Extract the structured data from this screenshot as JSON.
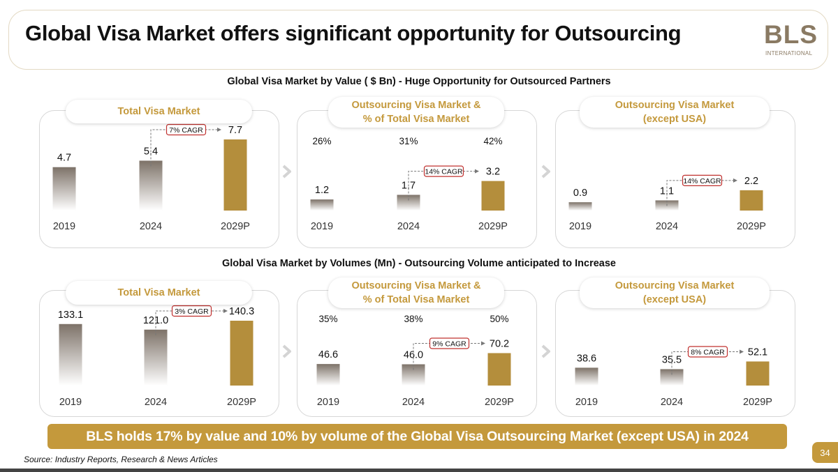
{
  "header": {
    "title": "Global Visa Market offers significant opportunity for Outsourcing",
    "logo_main": "BLS",
    "logo_sub": "INTERNATIONAL"
  },
  "sections": {
    "value_heading": "Global Visa Market by Value ( $ Bn) - Huge Opportunity for Outsourced Partners",
    "volume_heading": "Global Visa Market by Volumes (Mn) - Outsourcing Volume anticipated to Increase"
  },
  "colors": {
    "gold": "#c4993c",
    "bar": "#b48e3c",
    "cagr_border": "#c0302e"
  },
  "panels": {
    "value_total": {
      "title_lines": [
        "Total Visa Market"
      ]
    },
    "value_outsourcing": {
      "title_lines": [
        "Outsourcing Visa Market &",
        "% of Total Visa Market"
      ]
    },
    "value_except_usa": {
      "title_lines": [
        "Outsourcing Visa Market",
        "(except USA)"
      ]
    },
    "volume_total": {
      "title_lines": [
        "Total Visa Market"
      ]
    },
    "volume_outsourcing": {
      "title_lines": [
        "Outsourcing Visa Market &",
        "% of Total Visa Market"
      ]
    },
    "volume_except_usa": {
      "title_lines": [
        "Outsourcing Visa Market",
        "(except USA)"
      ]
    }
  },
  "chart_data": [
    {
      "id": "value_total",
      "type": "bar",
      "title": "Total Visa Market",
      "unit": "$ Bn",
      "categories": [
        "2019",
        "2024",
        "2029P"
      ],
      "values": [
        4.7,
        5.4,
        7.7
      ],
      "value_labels": [
        "4.7",
        "5.4",
        "7.7"
      ],
      "cagr": "7% CAGR",
      "max": 7.7
    },
    {
      "id": "value_outsourcing",
      "type": "bar",
      "title": "Outsourcing Visa Market & % of Total Visa Market",
      "unit": "$ Bn",
      "categories": [
        "2019",
        "2024",
        "2029P"
      ],
      "values": [
        1.2,
        1.7,
        3.2
      ],
      "value_labels": [
        "1.2",
        "1.7",
        "3.2"
      ],
      "share_of_total": [
        "26%",
        "31%",
        "42%"
      ],
      "cagr": "14% CAGR",
      "max": 7.7
    },
    {
      "id": "value_except_usa",
      "type": "bar",
      "title": "Outsourcing Visa Market (except USA)",
      "unit": "$ Bn",
      "categories": [
        "2019",
        "2024",
        "2029P"
      ],
      "values": [
        0.9,
        1.1,
        2.2
      ],
      "value_labels": [
        "0.9",
        "1.1",
        "2.2"
      ],
      "cagr": "14% CAGR",
      "max": 7.7
    },
    {
      "id": "volume_total",
      "type": "bar",
      "title": "Total Visa Market",
      "unit": "Mn",
      "categories": [
        "2019",
        "2024",
        "2029P"
      ],
      "values": [
        133.1,
        121.0,
        140.3
      ],
      "value_labels": [
        "133.1",
        "121.0",
        "140.3"
      ],
      "cagr": "3% CAGR",
      "max": 140.3
    },
    {
      "id": "volume_outsourcing",
      "type": "bar",
      "title": "Outsourcing Visa Market & % of Total Visa Market",
      "unit": "Mn",
      "categories": [
        "2019",
        "2024",
        "2029P"
      ],
      "values": [
        46.6,
        46.0,
        70.2
      ],
      "value_labels": [
        "46.6",
        "46.0",
        "70.2"
      ],
      "share_of_total": [
        "35%",
        "38%",
        "50%"
      ],
      "cagr": "9% CAGR",
      "max": 140.3
    },
    {
      "id": "volume_except_usa",
      "type": "bar",
      "title": "Outsourcing Visa Market (except USA)",
      "unit": "Mn",
      "categories": [
        "2019",
        "2024",
        "2029P"
      ],
      "values": [
        38.6,
        35.5,
        52.1
      ],
      "value_labels": [
        "38.6",
        "35.5",
        "52.1"
      ],
      "cagr": "8% CAGR",
      "max": 140.3
    }
  ],
  "footer": {
    "banner": "BLS holds 17% by value and 10% by volume of the Global Visa Outsourcing Market (except USA) in 2024",
    "source": "Source: Industry Reports, Research & News Articles",
    "page_number": "34"
  }
}
